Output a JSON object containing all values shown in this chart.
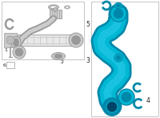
{
  "bg_color": "#ffffff",
  "border_color": "#bbbbbb",
  "tube_color": "#00b8d4",
  "tube_dark": "#0088aa",
  "tube_mid": "#00a0c0",
  "gray_dark": "#777777",
  "gray_mid": "#999999",
  "gray_light": "#bbbbbb",
  "gray_fill": "#cccccc",
  "white": "#ffffff",
  "black": "#222222",
  "label5": "5",
  "label4": "4",
  "label3": "3",
  "label2": "2",
  "label1": "1",
  "label6": "6"
}
